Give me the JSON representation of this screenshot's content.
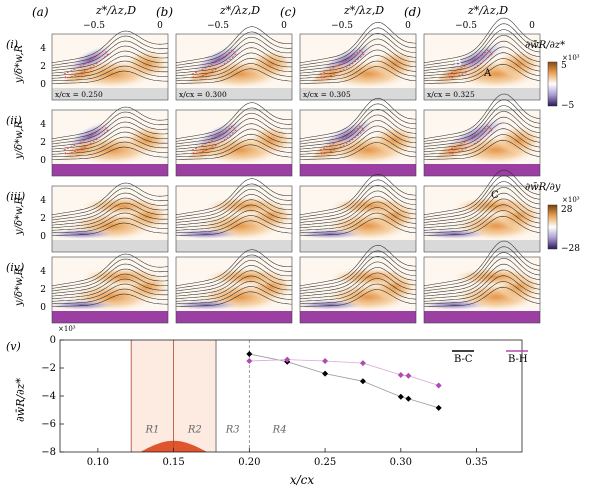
{
  "columns": [
    {
      "label": "(a)",
      "axis_label": "z*/λz,D"
    },
    {
      "label": "(b)",
      "axis_label": "z*/λz,D"
    },
    {
      "label": "(c)",
      "axis_label": "z*/λz,D"
    },
    {
      "label": "(d)",
      "axis_label": "z*/λz,D"
    }
  ],
  "top_ticks": [
    "−0.5",
    "0"
  ],
  "rows": [
    {
      "label": "(i)",
      "ylabel": "y/δ*w,R",
      "yticks": [
        "4",
        "2",
        "0"
      ],
      "band": "gray"
    },
    {
      "label": "(ii)",
      "ylabel": "y/δ*w,R",
      "yticks": [
        "4",
        "2",
        "0"
      ],
      "band": "purple"
    },
    {
      "label": "(iii)",
      "ylabel": "y/δ*w,R",
      "yticks": [
        "4",
        "2",
        "0"
      ],
      "band": "gray"
    },
    {
      "label": "(iv)",
      "ylabel": "y/δ*w,R",
      "yticks": [
        "4",
        "2",
        "0"
      ],
      "band": "purple"
    }
  ],
  "panel_annotations": {
    "positions": [
      "x/cx = 0.250",
      "x/cx = 0.300",
      "x/cx = 0.305",
      "x/cx = 0.325"
    ],
    "point_B": "B",
    "point_A": "A",
    "point_C": "C"
  },
  "colorbars": [
    {
      "title": "∂w̄R/∂z*",
      "exponent": "×10³",
      "max": "5",
      "min": "−5"
    },
    {
      "title": "∂w̄R/∂y",
      "exponent": "×10³",
      "max": "28",
      "min": "−28"
    }
  ],
  "colors": {
    "orange_strong": "#c8701e",
    "orange_light": "#f6d5aa",
    "purple_strong": "#5a3a8c",
    "purple_light": "#cfc6e6",
    "band_gray": "#d9d9d9",
    "band_purple": "#9b3fa3",
    "series_bc": "#000000",
    "series_bh": "#b04bb0",
    "region_fill": "#fde6dc",
    "bump": "#e0552d"
  },
  "chart_data": {
    "type": "scatter",
    "panel_label": "(v)",
    "ylabel": "∂w̄R/∂z*",
    "y_exponent": "×10³",
    "xlabel": "x/cx",
    "xlim": [
      0.075,
      0.38
    ],
    "ylim": [
      -8,
      0
    ],
    "xticks": [
      0.1,
      0.15,
      0.2,
      0.25,
      0.3,
      0.35
    ],
    "xtick_labels": [
      "0.10",
      "0.15",
      "0.20",
      "0.25",
      "0.30",
      "0.35"
    ],
    "yticks": [
      0,
      -2,
      -4,
      -6,
      -8
    ],
    "ytick_labels": [
      "0",
      "−2",
      "−4",
      "−6",
      "−8"
    ],
    "regions": [
      {
        "label": "R1",
        "x0": 0.122,
        "x1": 0.15
      },
      {
        "label": "R2",
        "x0": 0.15,
        "x1": 0.178
      },
      {
        "label": "R3",
        "x0": 0.178,
        "x1": 0.2
      },
      {
        "label": "R4",
        "x0": 0.2,
        "x1": 0.24
      }
    ],
    "vlines": [
      0.122,
      0.15,
      0.178,
      0.2
    ],
    "bump": {
      "center": 0.15,
      "half_width": 0.022,
      "height": 0.8
    },
    "series": [
      {
        "name": "B-C",
        "x": [
          0.2,
          0.225,
          0.25,
          0.275,
          0.3,
          0.305,
          0.325
        ],
        "y": [
          -1.0,
          -1.55,
          -2.4,
          -2.95,
          -4.05,
          -4.2,
          -4.85
        ]
      },
      {
        "name": "B-H",
        "x": [
          0.2,
          0.225,
          0.25,
          0.275,
          0.3,
          0.305,
          0.325
        ],
        "y": [
          -1.5,
          -1.4,
          -1.5,
          -1.65,
          -2.5,
          -2.55,
          -3.25
        ]
      }
    ],
    "legend_position": "top-right"
  }
}
